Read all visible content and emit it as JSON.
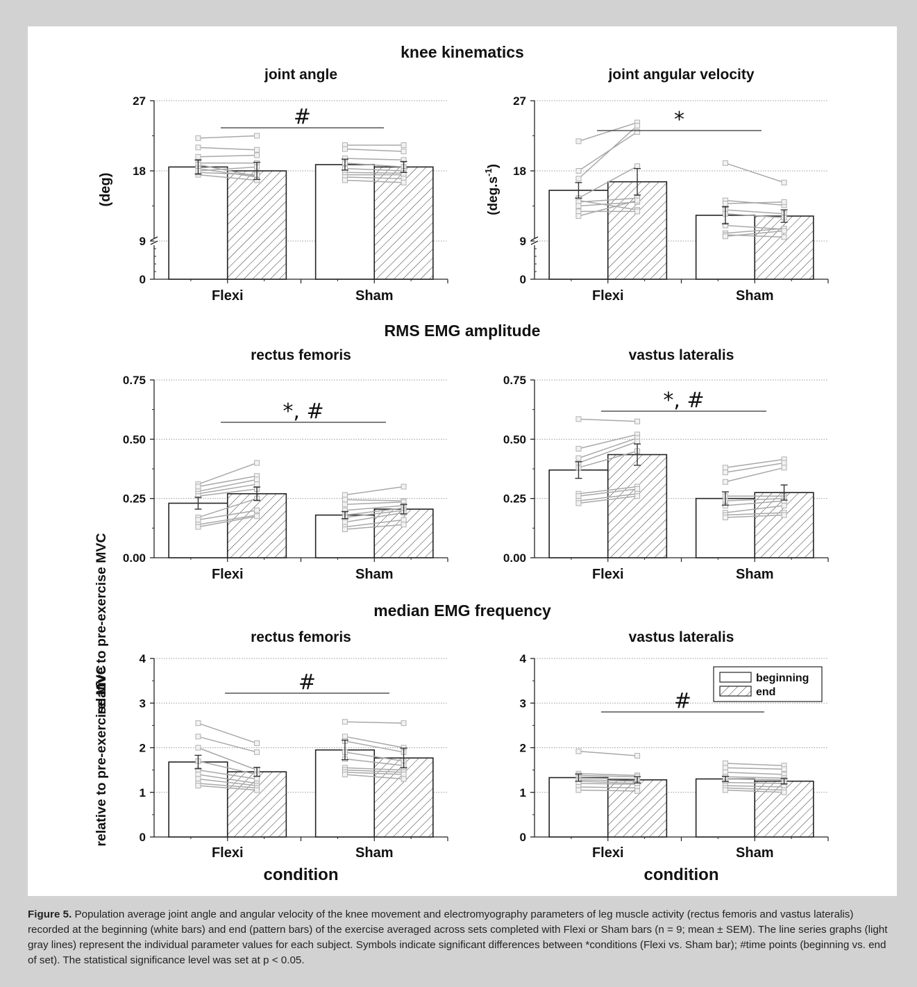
{
  "figure": {
    "sections": [
      {
        "title": "knee kinematics"
      },
      {
        "title": "RMS EMG amplitude"
      },
      {
        "title": "median EMG frequency"
      }
    ],
    "xlabel": "condition",
    "legend": {
      "beginning": "beginning",
      "end": "end"
    }
  },
  "caption": {
    "label": "Figure 5.",
    "text": "Population average joint angle and angular velocity of the knee movement and electromyography parameters of leg muscle activity (rectus femoris and vastus lateralis) recorded at the beginning (white bars) and end (pattern bars) of the exercise averaged across sets completed with Flexi or Sham bars (n = 9; mean ± SEM). The line series graphs (light gray lines) represent the individual parameter values for each subject. Symbols indicate significant differences between *conditions (Flexi vs. Sham bar); #time points (beginning vs. end of set). The statistical significance level was set at p < 0.05."
  },
  "chart_data": [
    {
      "type": "bar",
      "title": "joint angle",
      "ylabel": "(deg)",
      "categories": [
        "Flexi",
        "Sham"
      ],
      "series": [
        {
          "name": "beginning",
          "values": [
            18.5,
            18.8
          ],
          "sem": [
            0.9,
            0.7
          ]
        },
        {
          "name": "end",
          "values": [
            18.0,
            18.5
          ],
          "sem": [
            1.1,
            0.7
          ]
        }
      ],
      "yticks": [
        "0",
        "9",
        "18",
        "27"
      ],
      "ylim": [
        0,
        27
      ],
      "axis_break": [
        0,
        9
      ],
      "significance": "#",
      "subjects": [
        [
          [
            22.2,
            22.5
          ],
          [
            21.0,
            20.7
          ],
          [
            19.8,
            20.0
          ],
          [
            19.0,
            19.0
          ],
          [
            18.8,
            17.3
          ],
          [
            18.3,
            17.2
          ],
          [
            17.5,
            16.8
          ],
          [
            17.8,
            17.5
          ],
          [
            18.0,
            18.5
          ]
        ],
        [
          [
            21.3,
            21.3
          ],
          [
            20.8,
            20.5
          ],
          [
            19.6,
            19.4
          ],
          [
            19.0,
            18.5
          ],
          [
            18.3,
            18.0
          ],
          [
            17.8,
            17.7
          ],
          [
            17.5,
            17.5
          ],
          [
            17.2,
            17.0
          ],
          [
            16.8,
            16.5
          ]
        ]
      ]
    },
    {
      "type": "bar",
      "title": "joint angular velocity",
      "ylabel": "(deg.s-1)",
      "categories": [
        "Flexi",
        "Sham"
      ],
      "series": [
        {
          "name": "beginning",
          "values": [
            15.5,
            12.3
          ],
          "sem": [
            1.0,
            1.1
          ]
        },
        {
          "name": "end",
          "values": [
            16.6,
            12.2
          ],
          "sem": [
            1.7,
            0.8
          ]
        }
      ],
      "yticks": [
        "0",
        "9",
        "18",
        "27"
      ],
      "ylim": [
        0,
        27
      ],
      "axis_break": [
        0,
        9
      ],
      "significance": "*",
      "subjects": [
        [
          [
            21.8,
            24.2
          ],
          [
            18.0,
            23.0
          ],
          [
            17.0,
            23.8
          ],
          [
            14.5,
            18.6
          ],
          [
            14.2,
            13.0
          ],
          [
            14.0,
            14.5
          ],
          [
            13.5,
            14.0
          ],
          [
            12.8,
            12.8
          ],
          [
            12.2,
            14.2
          ]
        ],
        [
          [
            19.0,
            16.5
          ],
          [
            14.2,
            13.6
          ],
          [
            13.8,
            14.0
          ],
          [
            13.0,
            12.5
          ],
          [
            12.5,
            12.0
          ],
          [
            11.0,
            10.5
          ],
          [
            10.0,
            10.6
          ],
          [
            9.8,
            9.5
          ],
          [
            9.6,
            10.3
          ]
        ]
      ]
    },
    {
      "type": "bar",
      "title": "rectus femoris",
      "ylabel": "relative to pre-exercise MVC",
      "categories": [
        "Flexi",
        "Sham"
      ],
      "series": [
        {
          "name": "beginning",
          "values": [
            0.23,
            0.18
          ],
          "sem": [
            0.025,
            0.015
          ]
        },
        {
          "name": "end",
          "values": [
            0.27,
            0.205
          ],
          "sem": [
            0.028,
            0.02
          ]
        }
      ],
      "yticks": [
        "0.00",
        "0.25",
        "0.50",
        "0.75"
      ],
      "ylim": [
        0,
        0.75
      ],
      "significance": "*, #",
      "subjects": [
        [
          [
            0.31,
            0.4
          ],
          [
            0.3,
            0.345
          ],
          [
            0.28,
            0.33
          ],
          [
            0.27,
            0.31
          ],
          [
            0.26,
            0.29
          ],
          [
            0.17,
            0.25
          ],
          [
            0.16,
            0.2
          ],
          [
            0.14,
            0.18
          ],
          [
            0.13,
            0.175
          ]
        ],
        [
          [
            0.265,
            0.3
          ],
          [
            0.245,
            0.24
          ],
          [
            0.225,
            0.235
          ],
          [
            0.2,
            0.22
          ],
          [
            0.18,
            0.21
          ],
          [
            0.17,
            0.2
          ],
          [
            0.15,
            0.19
          ],
          [
            0.13,
            0.16
          ],
          [
            0.12,
            0.14
          ]
        ]
      ]
    },
    {
      "type": "bar",
      "title": "vastus lateralis",
      "ylabel": "",
      "categories": [
        "Flexi",
        "Sham"
      ],
      "series": [
        {
          "name": "beginning",
          "values": [
            0.37,
            0.25
          ],
          "sem": [
            0.035,
            0.028
          ]
        },
        {
          "name": "end",
          "values": [
            0.435,
            0.275
          ],
          "sem": [
            0.045,
            0.032
          ]
        }
      ],
      "yticks": [
        "0.00",
        "0.25",
        "0.50",
        "0.75"
      ],
      "ylim": [
        0,
        0.75
      ],
      "significance": "*, #",
      "subjects": [
        [
          [
            0.585,
            0.575
          ],
          [
            0.46,
            0.52
          ],
          [
            0.42,
            0.505
          ],
          [
            0.4,
            0.49
          ],
          [
            0.38,
            0.45
          ],
          [
            0.27,
            0.3
          ],
          [
            0.26,
            0.29
          ],
          [
            0.24,
            0.27
          ],
          [
            0.23,
            0.26
          ]
        ],
        [
          [
            0.38,
            0.415
          ],
          [
            0.36,
            0.4
          ],
          [
            0.32,
            0.38
          ],
          [
            0.26,
            0.26
          ],
          [
            0.24,
            0.25
          ],
          [
            0.22,
            0.24
          ],
          [
            0.19,
            0.22
          ],
          [
            0.18,
            0.19
          ],
          [
            0.17,
            0.18
          ]
        ]
      ]
    },
    {
      "type": "bar",
      "title": "rectus femoris",
      "ylabel": "relative to pre-exercise MVC",
      "categories": [
        "Flexi",
        "Sham"
      ],
      "series": [
        {
          "name": "beginning",
          "values": [
            1.68,
            1.95
          ],
          "sem": [
            0.15,
            0.22
          ]
        },
        {
          "name": "end",
          "values": [
            1.46,
            1.77
          ],
          "sem": [
            0.1,
            0.22
          ]
        }
      ],
      "yticks": [
        "0",
        "1",
        "2",
        "3",
        "4"
      ],
      "ylim": [
        0,
        4
      ],
      "significance": "#",
      "xlabel": "condition",
      "subjects": [
        [
          [
            2.55,
            2.1
          ],
          [
            2.25,
            1.9
          ],
          [
            2.0,
            1.5
          ],
          [
            1.7,
            1.4
          ],
          [
            1.5,
            1.3
          ],
          [
            1.4,
            1.2
          ],
          [
            1.3,
            1.15
          ],
          [
            1.2,
            1.1
          ],
          [
            1.15,
            1.05
          ]
        ],
        [
          [
            2.58,
            2.55
          ],
          [
            2.25,
            2.0
          ],
          [
            2.15,
            1.9
          ],
          [
            1.9,
            1.7
          ],
          [
            1.75,
            1.6
          ],
          [
            1.55,
            1.5
          ],
          [
            1.5,
            1.45
          ],
          [
            1.45,
            1.4
          ],
          [
            1.4,
            1.3
          ]
        ]
      ]
    },
    {
      "type": "bar",
      "title": "vastus lateralis",
      "ylabel": "",
      "categories": [
        "Flexi",
        "Sham"
      ],
      "series": [
        {
          "name": "beginning",
          "values": [
            1.33,
            1.3
          ],
          "sem": [
            0.08,
            0.06
          ]
        },
        {
          "name": "end",
          "values": [
            1.28,
            1.25
          ],
          "sem": [
            0.07,
            0.06
          ]
        }
      ],
      "yticks": [
        "0",
        "1",
        "2",
        "3",
        "4"
      ],
      "ylim": [
        0,
        4
      ],
      "significance": "#",
      "xlabel": "condition",
      "legend": [
        "beginning",
        "end"
      ],
      "subjects": [
        [
          [
            1.92,
            1.82
          ],
          [
            1.42,
            1.38
          ],
          [
            1.38,
            1.35
          ],
          [
            1.32,
            1.3
          ],
          [
            1.28,
            1.25
          ],
          [
            1.25,
            1.2
          ],
          [
            1.2,
            1.18
          ],
          [
            1.12,
            1.1
          ],
          [
            1.05,
            1.03
          ]
        ],
        [
          [
            1.65,
            1.6
          ],
          [
            1.55,
            1.52
          ],
          [
            1.45,
            1.4
          ],
          [
            1.35,
            1.32
          ],
          [
            1.3,
            1.28
          ],
          [
            1.22,
            1.2
          ],
          [
            1.15,
            1.12
          ],
          [
            1.1,
            1.05
          ],
          [
            1.05,
            1.0
          ]
        ]
      ]
    }
  ]
}
